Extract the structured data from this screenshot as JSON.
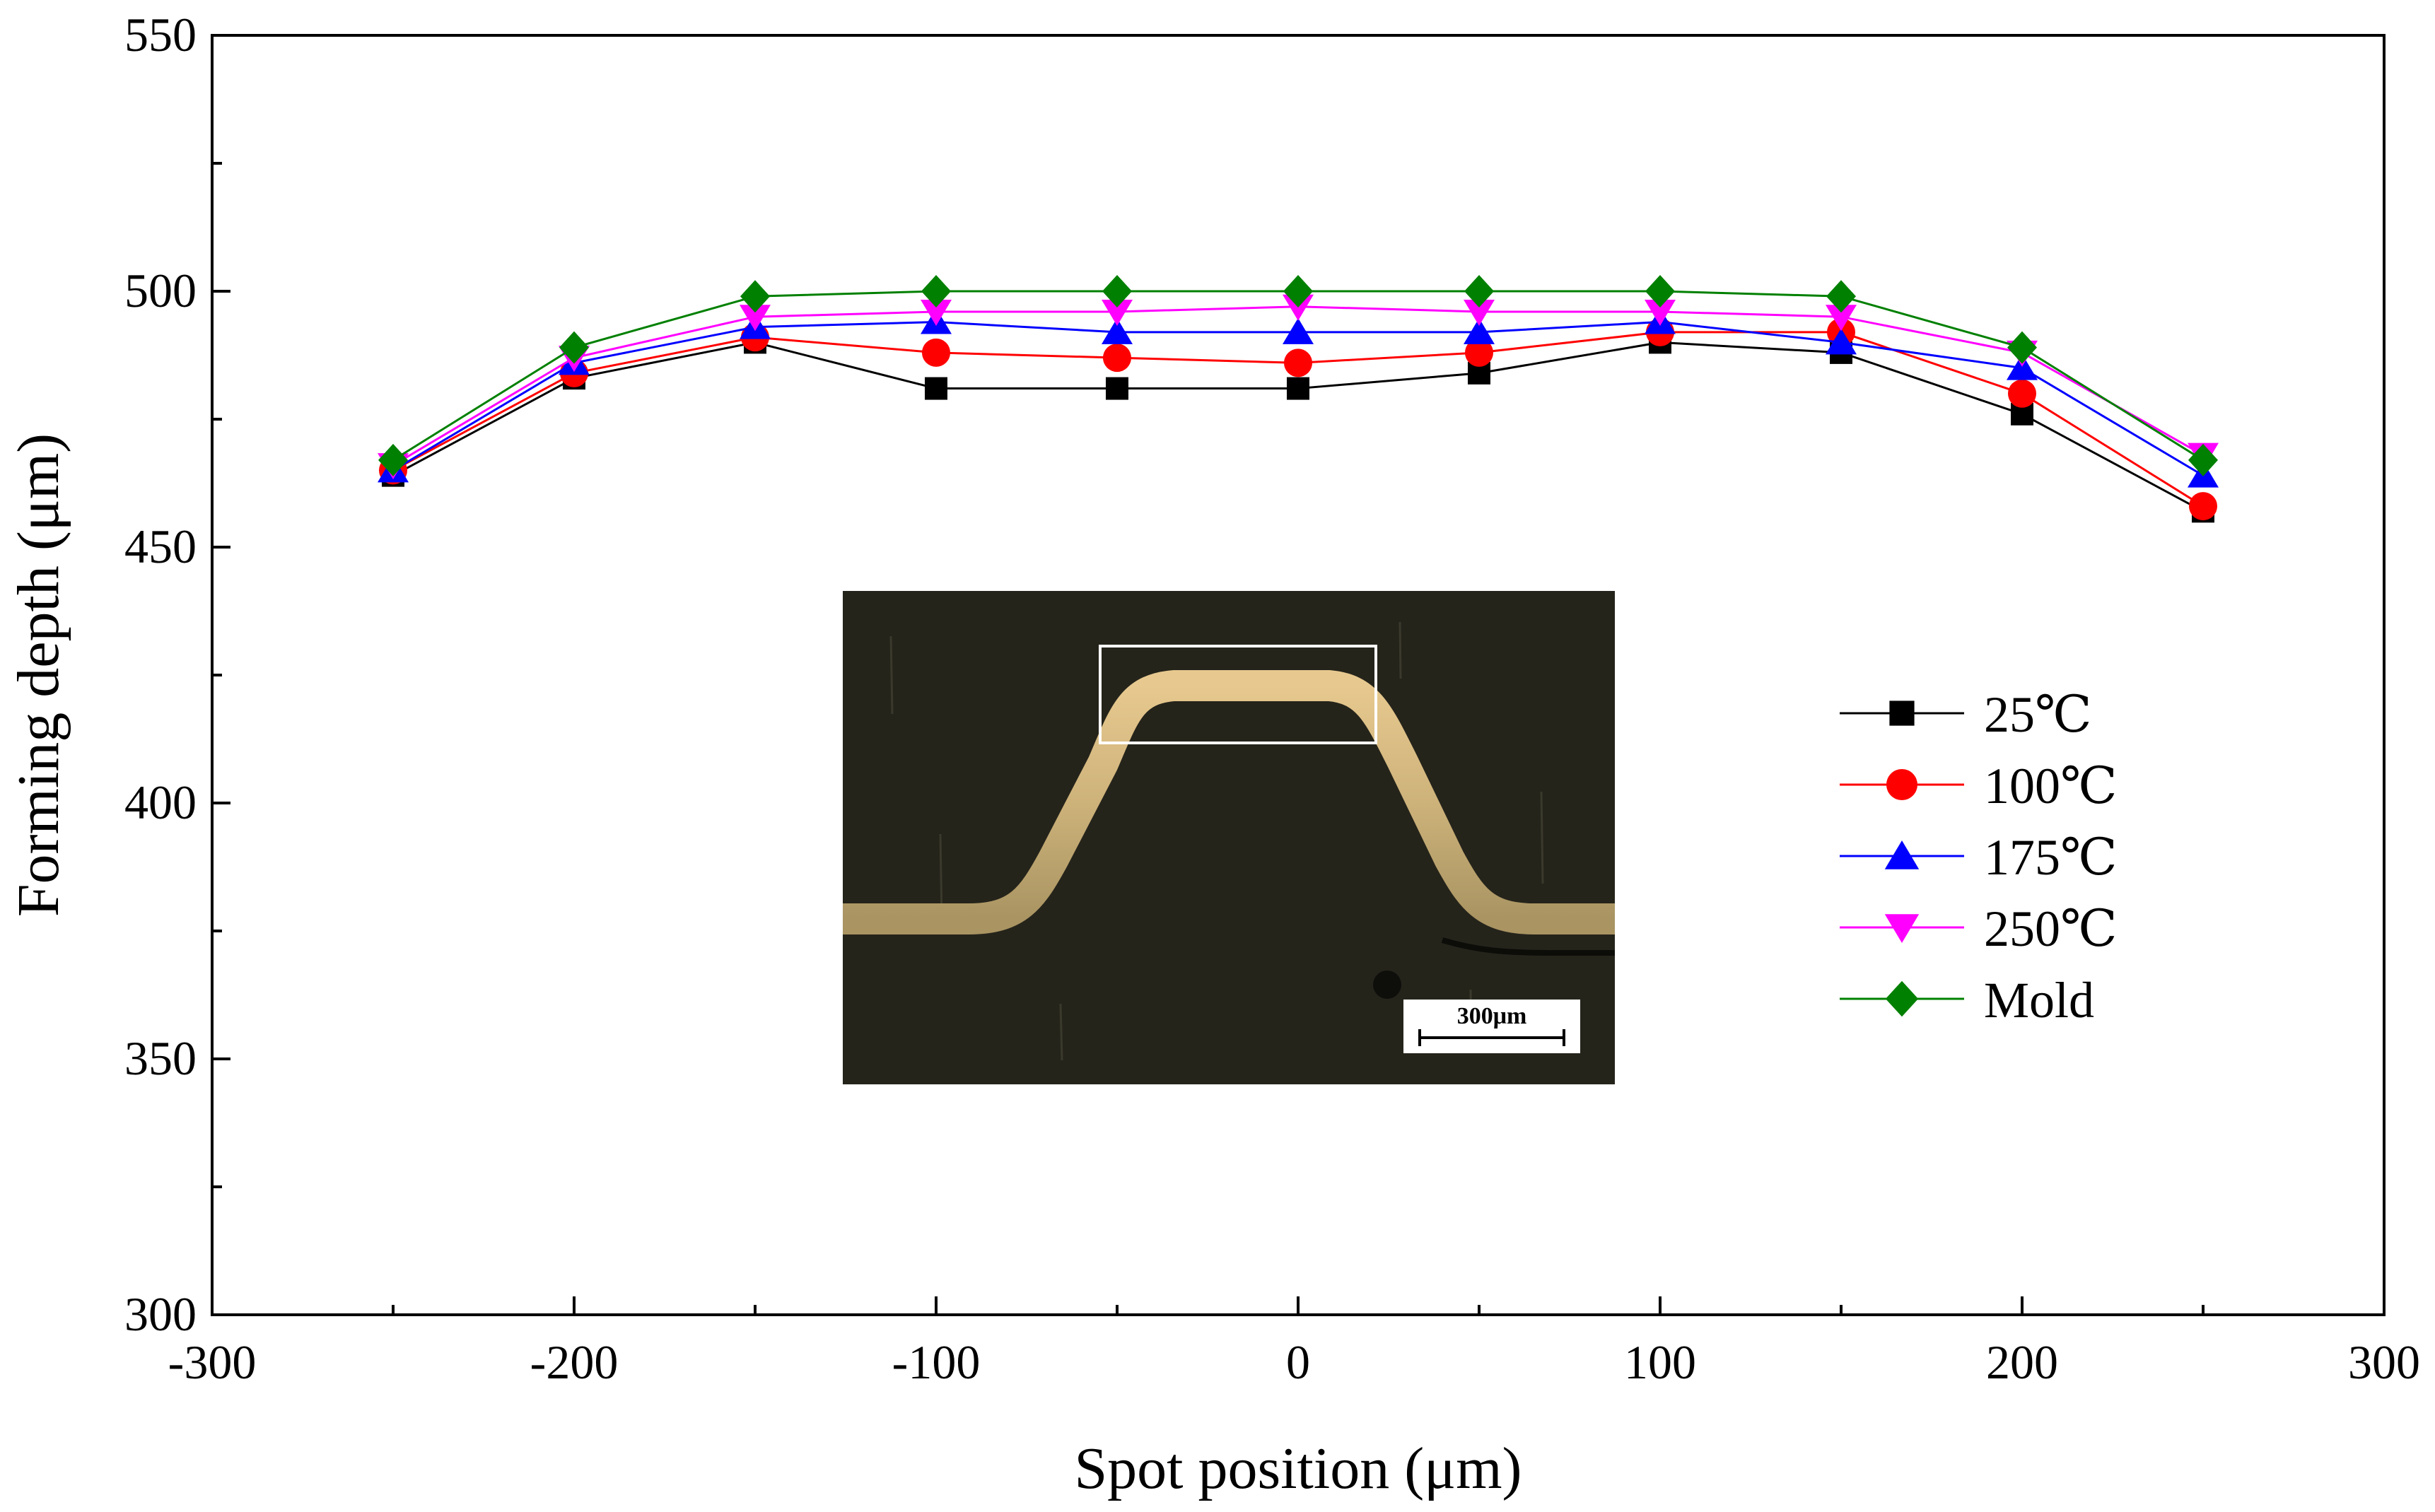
{
  "chart_data": {
    "type": "line",
    "title": "",
    "xlabel": "Spot position (μm)",
    "ylabel": "Forming depth (μm)",
    "xlim": [
      -300,
      300
    ],
    "ylim": [
      300,
      550
    ],
    "x_ticks": [
      -300,
      -200,
      -100,
      0,
      100,
      200,
      300
    ],
    "y_ticks": [
      300,
      350,
      400,
      450,
      500,
      550
    ],
    "grid": false,
    "legend_position": "right",
    "x": [
      -250,
      -200,
      -150,
      -100,
      -50,
      0,
      50,
      100,
      150,
      200,
      250
    ],
    "series": [
      {
        "name": "25℃",
        "color": "#000000",
        "marker": "square",
        "values": [
          464,
          483,
          490,
          481,
          481,
          481,
          484,
          490,
          488,
          476,
          457
        ]
      },
      {
        "name": "100℃",
        "color": "#ff0000",
        "marker": "circle",
        "values": [
          465,
          484,
          491,
          488,
          487,
          486,
          488,
          492,
          492,
          480,
          458
        ]
      },
      {
        "name": "175℃",
        "color": "#0000ff",
        "marker": "triangle-up",
        "values": [
          465,
          486,
          493,
          494,
          492,
          492,
          492,
          494,
          490,
          485,
          464
        ]
      },
      {
        "name": "250℃",
        "color": "#ff00ff",
        "marker": "triangle-down",
        "values": [
          466,
          487,
          495,
          496,
          496,
          497,
          496,
          496,
          495,
          488,
          468
        ]
      },
      {
        "name": "Mold",
        "color": "#008000",
        "marker": "diamond",
        "values": [
          467,
          489,
          499,
          500,
          500,
          500,
          500,
          500,
          499,
          489,
          467
        ]
      }
    ],
    "inset": {
      "description_type": "micrograph",
      "scale_bar_label": "300μm"
    }
  }
}
